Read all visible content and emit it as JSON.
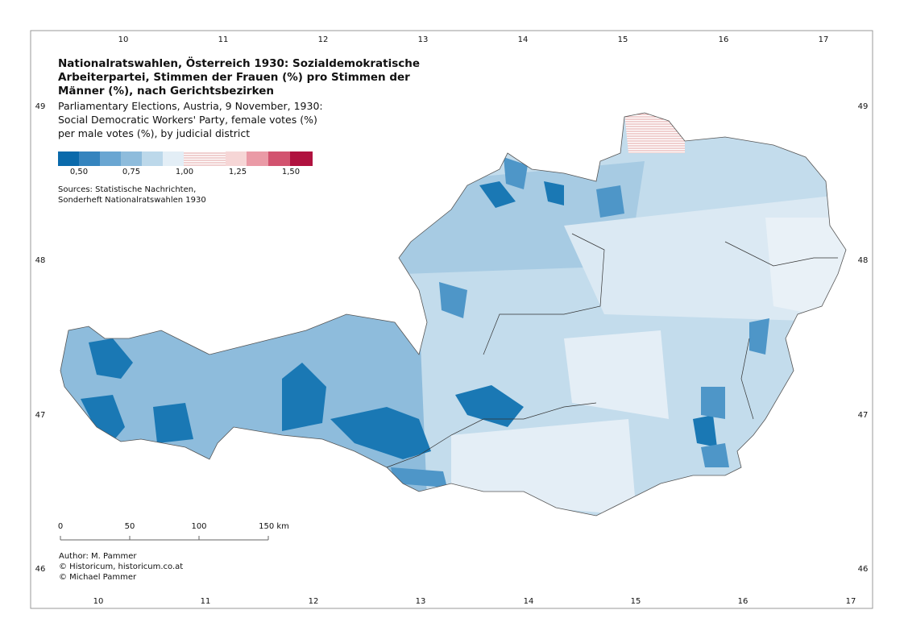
{
  "title": [
    "Nationalratswahlen, Österreich 1930: Sozialdemokratische",
    "Arbeiterpartei, Stimmen der Frauen (%) pro Stimmen der",
    "Männer (%), nach Gerichtsbezirken"
  ],
  "subtitle": [
    "Parliamentary Elections, Austria, 9 November, 1930:",
    "Social Democratic Workers' Party, female votes (%)",
    "per male votes (%), by judicial district"
  ],
  "legend": {
    "labels": [
      "0,50",
      "0,75",
      "1,00",
      "1,25",
      "1,50"
    ]
  },
  "sources": [
    "Sources: Statistische Nachrichten,",
    "Sonderheft Nationalratswahlen 1930"
  ],
  "scale_bar": {
    "labels": [
      "0",
      "50",
      "100",
      "150 km"
    ]
  },
  "credits": [
    "Author: M. Pammer",
    "© Historicum, historicum.co.at",
    "© Michael Pammer"
  ],
  "graticule": {
    "top": [
      10,
      11,
      12,
      13,
      14,
      15,
      16,
      17
    ],
    "bottom": [
      10,
      11,
      12,
      13,
      14,
      15,
      16,
      17
    ],
    "left": [
      49,
      48,
      47,
      46
    ],
    "right": [
      49,
      48,
      47,
      46
    ]
  }
}
